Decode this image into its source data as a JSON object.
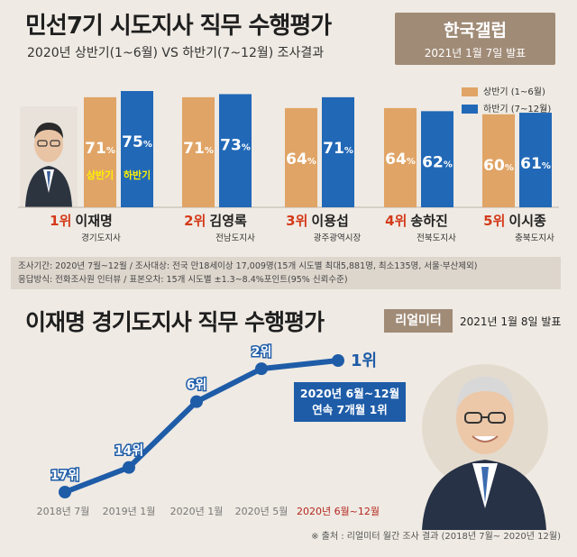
{
  "header": {
    "title": "민선7기 시도지사 직무 수행평가",
    "subtitle": "2020년 상반기(1~6월) VS 하반기(7~12월) 조사결과",
    "badge_title": "한국갤럽",
    "badge_date": "2021년 1월 7일 발표"
  },
  "colors": {
    "first_half": "#e0a466",
    "second_half": "#2168b7",
    "rank": "#d43a1a",
    "line": "#1e5ca8"
  },
  "legend": {
    "first_half": "상반기 (1~6월)",
    "second_half": "하반기 (7~12월)"
  },
  "bar_inner_labels": {
    "first_half": "상반기",
    "second_half": "하반기"
  },
  "chart_data": [
    {
      "type": "bar",
      "title": "민선7기 시도지사 직무 수행평가",
      "categories": [
        "1위 이재명",
        "2위 김영록",
        "3위 이용섭",
        "4위 송하진",
        "5위 이시종"
      ],
      "series": [
        {
          "name": "상반기 (1~6월)",
          "values": [
            71,
            71,
            64,
            64,
            60
          ]
        },
        {
          "name": "하반기 (7~12월)",
          "values": [
            75,
            73,
            71,
            62,
            61
          ]
        }
      ],
      "value_suffix": "%",
      "legend_position": "top-right",
      "grid": false
    },
    {
      "type": "line",
      "title": "이재명 경기도지사 직무 수행평가",
      "x": [
        "2018년 7월",
        "2019년 1월",
        "2020년 1월",
        "2020년 5월",
        "2020년 6월~12월"
      ],
      "series": [
        {
          "name": "",
          "values": [
            17,
            14,
            6,
            2,
            1
          ],
          "labels": [
            "17위",
            "14위",
            "6위",
            "2위",
            "1위"
          ]
        }
      ],
      "y_inverted": true,
      "grid": false
    }
  ],
  "governors": [
    {
      "rank": "1위",
      "name": "이재명",
      "region": "경기도지사"
    },
    {
      "rank": "2위",
      "name": "김영록",
      "region": "전남도지사"
    },
    {
      "rank": "3위",
      "name": "이용섭",
      "region": "광주광역시장"
    },
    {
      "rank": "4위",
      "name": "송하진",
      "region": "전북도지사"
    },
    {
      "rank": "5위",
      "name": "이시종",
      "region": "충북도지사"
    }
  ],
  "notes": {
    "line1": "조사기간: 2020년 7월~12월 / 조사대상: 전국 만18세이상 17,009명(15개 시도별 최대5,881명, 최소135명, 서울·부산제외)",
    "line2": "응답방식: 전화조사원 인터뷰 / 표본오차: 15개 시도별 ±1.3~8.4%포인트(95% 신뢰수준)"
  },
  "section2": {
    "title": "이재명 경기도지사 직무 수행평가",
    "badge": "리얼미터",
    "badge_date": "2021년 1월 8일 발표",
    "callout_line1": "2020년 6월~12월",
    "callout_line2": "연속 7개월 1위",
    "source": "※ 출처 : 리얼미터 월간 조사 결과 (2018년 7월~ 2020년 12월)"
  }
}
